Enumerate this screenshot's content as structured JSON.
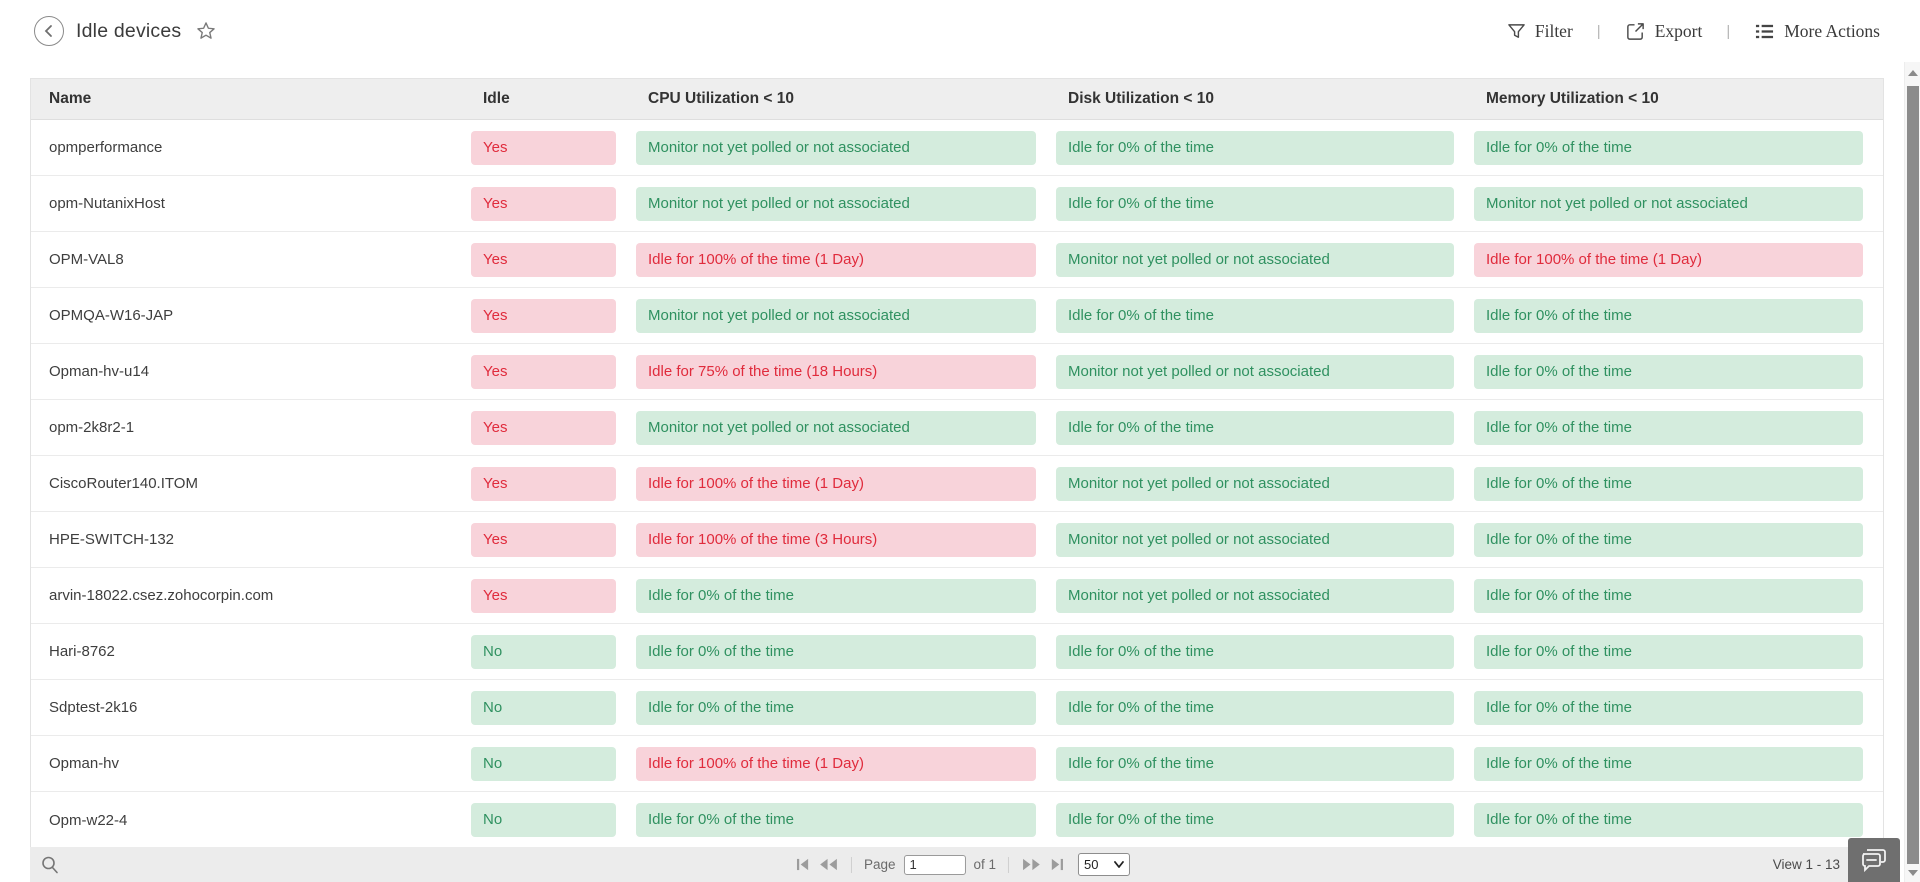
{
  "header": {
    "title": "Idle devices",
    "actions": [
      {
        "id": "filter",
        "label": "Filter"
      },
      {
        "id": "export",
        "label": "Export"
      },
      {
        "id": "more_actions",
        "label": "More Actions"
      }
    ]
  },
  "colors": {
    "badge_red_bg": "#f8d3da",
    "badge_red_text": "#e02b3c",
    "badge_green_bg": "#d4ecdd",
    "badge_green_text": "#2f9160",
    "header_row_bg": "#eeeeee",
    "footer_bg": "#ececec"
  },
  "table": {
    "columns": [
      "Name",
      "Idle",
      "CPU Utilization < 10",
      "Disk Utilization < 10",
      "Memory Utilization < 10"
    ],
    "rows": [
      {
        "name": "opmperformance",
        "idle": {
          "text": "Yes",
          "tone": "red"
        },
        "cpu": {
          "text": "Monitor not yet polled or not associated",
          "tone": "green"
        },
        "disk": {
          "text": "Idle for 0% of the time",
          "tone": "green"
        },
        "memory": {
          "text": "Idle for 0% of the time",
          "tone": "green"
        }
      },
      {
        "name": "opm-NutanixHost",
        "idle": {
          "text": "Yes",
          "tone": "red"
        },
        "cpu": {
          "text": "Monitor not yet polled or not associated",
          "tone": "green"
        },
        "disk": {
          "text": "Idle for 0% of the time",
          "tone": "green"
        },
        "memory": {
          "text": "Monitor not yet polled or not associated",
          "tone": "green"
        }
      },
      {
        "name": "OPM-VAL8",
        "idle": {
          "text": "Yes",
          "tone": "red"
        },
        "cpu": {
          "text": "Idle for 100% of the time (1 Day)",
          "tone": "red"
        },
        "disk": {
          "text": "Monitor not yet polled or not associated",
          "tone": "green"
        },
        "memory": {
          "text": "Idle for 100% of the time (1 Day)",
          "tone": "red"
        }
      },
      {
        "name": "OPMQA-W16-JAP",
        "idle": {
          "text": "Yes",
          "tone": "red"
        },
        "cpu": {
          "text": "Monitor not yet polled or not associated",
          "tone": "green"
        },
        "disk": {
          "text": "Idle for 0% of the time",
          "tone": "green"
        },
        "memory": {
          "text": "Idle for 0% of the time",
          "tone": "green"
        }
      },
      {
        "name": "Opman-hv-u14",
        "idle": {
          "text": "Yes",
          "tone": "red"
        },
        "cpu": {
          "text": "Idle for 75% of the time (18 Hours)",
          "tone": "red"
        },
        "disk": {
          "text": "Monitor not yet polled or not associated",
          "tone": "green"
        },
        "memory": {
          "text": "Idle for 0% of the time",
          "tone": "green"
        }
      },
      {
        "name": "opm-2k8r2-1",
        "idle": {
          "text": "Yes",
          "tone": "red"
        },
        "cpu": {
          "text": "Monitor not yet polled or not associated",
          "tone": "green"
        },
        "disk": {
          "text": "Idle for 0% of the time",
          "tone": "green"
        },
        "memory": {
          "text": "Idle for 0% of the time",
          "tone": "green"
        }
      },
      {
        "name": "CiscoRouter140.ITOM",
        "idle": {
          "text": "Yes",
          "tone": "red"
        },
        "cpu": {
          "text": "Idle for 100% of the time (1 Day)",
          "tone": "red"
        },
        "disk": {
          "text": "Monitor not yet polled or not associated",
          "tone": "green"
        },
        "memory": {
          "text": "Idle for 0% of the time",
          "tone": "green"
        }
      },
      {
        "name": "HPE-SWITCH-132",
        "idle": {
          "text": "Yes",
          "tone": "red"
        },
        "cpu": {
          "text": "Idle for 100% of the time (3 Hours)",
          "tone": "red"
        },
        "disk": {
          "text": "Monitor not yet polled or not associated",
          "tone": "green"
        },
        "memory": {
          "text": "Idle for 0% of the time",
          "tone": "green"
        }
      },
      {
        "name": "arvin-18022.csez.zohocorpin.com",
        "idle": {
          "text": "Yes",
          "tone": "red"
        },
        "cpu": {
          "text": "Idle for 0% of the time",
          "tone": "green"
        },
        "disk": {
          "text": "Monitor not yet polled or not associated",
          "tone": "green"
        },
        "memory": {
          "text": "Idle for 0% of the time",
          "tone": "green"
        }
      },
      {
        "name": "Hari-8762",
        "idle": {
          "text": "No",
          "tone": "green"
        },
        "cpu": {
          "text": "Idle for 0% of the time",
          "tone": "green"
        },
        "disk": {
          "text": "Idle for 0% of the time",
          "tone": "green"
        },
        "memory": {
          "text": "Idle for 0% of the time",
          "tone": "green"
        }
      },
      {
        "name": "Sdptest-2k16",
        "idle": {
          "text": "No",
          "tone": "green"
        },
        "cpu": {
          "text": "Idle for 0% of the time",
          "tone": "green"
        },
        "disk": {
          "text": "Idle for 0% of the time",
          "tone": "green"
        },
        "memory": {
          "text": "Idle for 0% of the time",
          "tone": "green"
        }
      },
      {
        "name": "Opman-hv",
        "idle": {
          "text": "No",
          "tone": "green"
        },
        "cpu": {
          "text": "Idle for 100% of the time (1 Day)",
          "tone": "red"
        },
        "disk": {
          "text": "Idle for 0% of the time",
          "tone": "green"
        },
        "memory": {
          "text": "Idle for 0% of the time",
          "tone": "green"
        }
      },
      {
        "name": "Opm-w22-4",
        "idle": {
          "text": "No",
          "tone": "green"
        },
        "cpu": {
          "text": "Idle for 0% of the time",
          "tone": "green"
        },
        "disk": {
          "text": "Idle for 0% of the time",
          "tone": "green"
        },
        "memory": {
          "text": "Idle for 0% of the time",
          "tone": "green"
        }
      }
    ]
  },
  "footer": {
    "page_label": "Page",
    "page_value": "1",
    "of_label": "of 1",
    "page_size": "50",
    "view_range": "View 1 - 13"
  }
}
